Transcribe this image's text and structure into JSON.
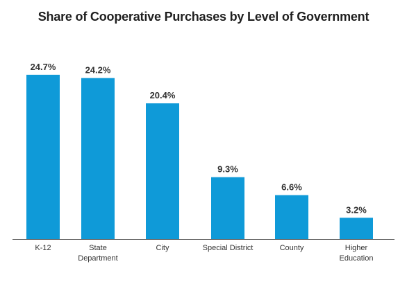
{
  "chart_data": {
    "type": "bar",
    "title": "Share of Cooperative Purchases by Level of Government",
    "categories": [
      "K-12",
      "State Department",
      "City",
      "Special District",
      "County",
      "Higher Education"
    ],
    "category_lines": [
      [
        "K-12"
      ],
      [
        "State",
        "Department"
      ],
      [
        "City"
      ],
      [
        "Special District"
      ],
      [
        "County"
      ],
      [
        "Higher",
        "Education"
      ]
    ],
    "values": [
      24.7,
      24.2,
      20.4,
      9.3,
      6.6,
      3.2
    ],
    "value_labels": [
      "24.7%",
      "24.2%",
      "20.4%",
      "9.3%",
      "6.6%",
      "3.2%"
    ],
    "ylim": [
      0,
      25
    ],
    "grid": false,
    "legend": "none",
    "colors": {
      "bar": "#0f9ad8",
      "axis": "#555555"
    }
  }
}
